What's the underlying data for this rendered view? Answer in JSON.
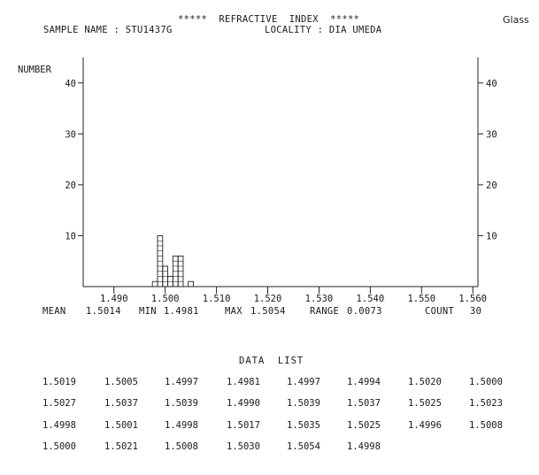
{
  "header": {
    "title": "*****  REFRACTIVE  INDEX  *****",
    "sample_name": "SAMPLE NAME : STU1437G",
    "locality": "LOCALITY : DIA UMEDA",
    "type": "Glass"
  },
  "chart_data": {
    "type": "bar",
    "title": "*****  REFRACTIVE  INDEX  *****",
    "ylabel": "NUMBER",
    "xlabel": "",
    "xlim": [
      1.484,
      1.561
    ],
    "ylim": [
      0,
      45
    ],
    "x_ticks": [
      1.49,
      1.5,
      1.51,
      1.52,
      1.53,
      1.54,
      1.55,
      1.56
    ],
    "x_tick_labels": [
      "1.490",
      "1.500",
      "1.510",
      "1.520",
      "1.530",
      "1.540",
      "1.550",
      "1.560"
    ],
    "y_ticks": [
      10,
      20,
      30,
      40
    ],
    "y_tick_labels": [
      "10",
      "20",
      "30",
      "40"
    ],
    "bin_width": 0.001,
    "bins": [
      {
        "x": 1.498,
        "count": 1
      },
      {
        "x": 1.499,
        "count": 10
      },
      {
        "x": 1.5,
        "count": 4
      },
      {
        "x": 1.501,
        "count": 2
      },
      {
        "x": 1.502,
        "count": 6
      },
      {
        "x": 1.503,
        "count": 6
      },
      {
        "x": 1.505,
        "count": 1
      }
    ],
    "grid": false,
    "legend": "none"
  },
  "stats": {
    "mean_label": "MEAN",
    "mean": "1.5014",
    "min_label": "MIN",
    "min": "1.4981",
    "max_label": "MAX",
    "max": "1.5054",
    "range_label": "RANGE",
    "range": "0.0073",
    "count_label": "COUNT",
    "count": "30"
  },
  "data_list": {
    "title": "DATA  LIST",
    "rows": [
      [
        "1.5019",
        "1.5005",
        "1.4997",
        "1.4981",
        "1.4997",
        "1.4994",
        "1.5020",
        "1.5000"
      ],
      [
        "1.5027",
        "1.5037",
        "1.5039",
        "1.4990",
        "1.5039",
        "1.5037",
        "1.5025",
        "1.5023"
      ],
      [
        "1.4998",
        "1.5001",
        "1.4998",
        "1.5017",
        "1.5035",
        "1.5025",
        "1.4996",
        "1.5008"
      ],
      [
        "1.5000",
        "1.5021",
        "1.5008",
        "1.5030",
        "1.5054",
        "1.4998"
      ]
    ]
  }
}
